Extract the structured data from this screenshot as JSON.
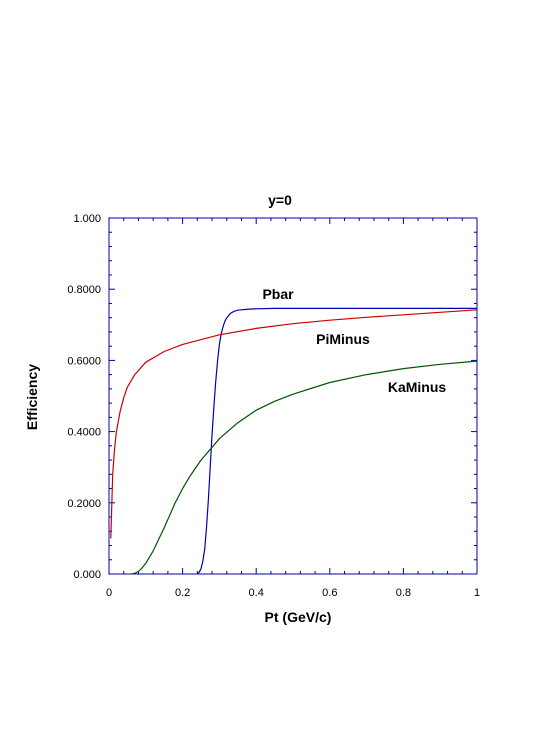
{
  "chart_data": {
    "type": "line",
    "title": "y=0",
    "xlabel": "Pt (GeV/c)",
    "ylabel": "Efficiency",
    "xlim": [
      0,
      1
    ],
    "ylim": [
      0,
      1
    ],
    "xticks": [
      0,
      0.2,
      0.4,
      0.6,
      0.8,
      1
    ],
    "xtick_labels": [
      "0",
      "0.2",
      "0.4",
      "0.6",
      "0.8",
      "1"
    ],
    "yticks": [
      0,
      0.2,
      0.4,
      0.6,
      0.8,
      1
    ],
    "ytick_labels": [
      "0.000",
      "0.2000",
      "0.4000",
      "0.6000",
      "0.8000",
      "1.000"
    ],
    "grid": false,
    "legend": "none (series labelled inline)",
    "series": [
      {
        "name": "Pbar",
        "color": "#0000bb",
        "x": [
          0.24,
          0.245,
          0.25,
          0.255,
          0.26,
          0.265,
          0.27,
          0.275,
          0.28,
          0.285,
          0.29,
          0.295,
          0.3,
          0.305,
          0.31,
          0.315,
          0.32,
          0.33,
          0.34,
          0.35,
          0.36,
          0.37,
          0.38,
          0.4,
          0.45,
          0.5,
          0.6,
          0.8,
          1.0
        ],
        "y": [
          0.0,
          0.005,
          0.015,
          0.035,
          0.07,
          0.13,
          0.21,
          0.3,
          0.39,
          0.47,
          0.54,
          0.6,
          0.645,
          0.675,
          0.695,
          0.71,
          0.72,
          0.732,
          0.738,
          0.741,
          0.742,
          0.743,
          0.744,
          0.745,
          0.746,
          0.746,
          0.746,
          0.746,
          0.746
        ]
      },
      {
        "name": "PiMinus",
        "color": "#cc0000",
        "x": [
          0.005,
          0.01,
          0.015,
          0.02,
          0.03,
          0.04,
          0.05,
          0.07,
          0.1,
          0.15,
          0.2,
          0.3,
          0.4,
          0.5,
          0.6,
          0.7,
          0.8,
          0.9,
          1.0
        ],
        "y": [
          0.1,
          0.28,
          0.35,
          0.4,
          0.455,
          0.495,
          0.525,
          0.56,
          0.595,
          0.625,
          0.645,
          0.672,
          0.69,
          0.703,
          0.713,
          0.721,
          0.728,
          0.735,
          0.742
        ]
      },
      {
        "name": "KaMinus",
        "color": "#005500",
        "x": [
          0.06,
          0.07,
          0.08,
          0.09,
          0.1,
          0.12,
          0.15,
          0.18,
          0.2,
          0.22,
          0.25,
          0.3,
          0.35,
          0.4,
          0.45,
          0.5,
          0.6,
          0.7,
          0.8,
          0.9,
          1.0
        ],
        "y": [
          0.0,
          0.002,
          0.007,
          0.017,
          0.03,
          0.065,
          0.13,
          0.2,
          0.24,
          0.275,
          0.32,
          0.38,
          0.425,
          0.46,
          0.485,
          0.505,
          0.538,
          0.56,
          0.577,
          0.589,
          0.598
        ]
      }
    ]
  }
}
